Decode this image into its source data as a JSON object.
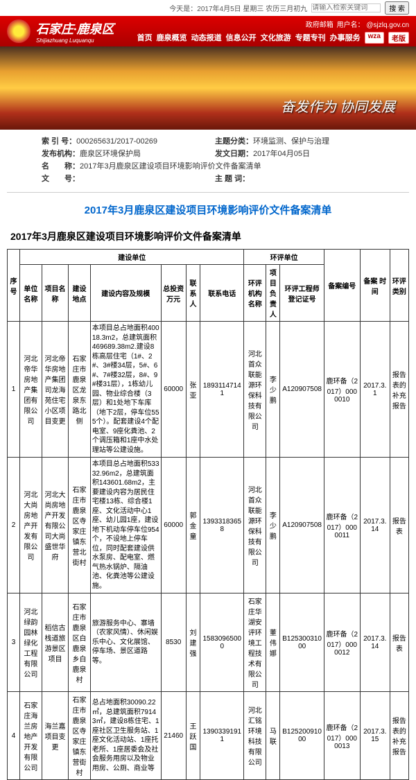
{
  "top": {
    "date": "今天是：2017年4月5日 星期三 农历三月初九",
    "search_placeholder": "请输入检索关键词",
    "search_btn": "搜 索"
  },
  "header": {
    "site_cn": "石家庄·鹿泉区",
    "site_py": "Shijiazhuang Luquanqu",
    "links": [
      "政府邮箱",
      "用户名：",
      "@sjzlq.gov.cn"
    ],
    "nav": [
      "首页",
      "鹿泉概览",
      "动态报道",
      "信息公开",
      "文化旅游",
      "专题专刊",
      "办事服务"
    ],
    "wza": "wza",
    "old": "老版"
  },
  "banner": {
    "slogan": "奋发作为  协同发展"
  },
  "meta": {
    "index_lbl": "索 引 号：",
    "index_val": "000265631/2017-00269",
    "topic_lbl": "主题分类：",
    "topic_val": "环境监测、保护与治理",
    "org_lbl": "发布机构：",
    "org_val": "鹿泉区环境保护局",
    "date_lbl": "发文日期：",
    "date_val": "2017年04月05日",
    "name_lbl": "名　　称：",
    "name_val": "2017年3月鹿泉区建设项目环境影响评价文件备案清单",
    "docno_lbl": "文　　号：",
    "kw_lbl": "主 题 词："
  },
  "page_title": "2017年3月鹿泉区建设项目环境影响评价文件备案清单",
  "sub_title": "2017年3月鹿泉区建设项目环境影响评价文件备案清单",
  "th": {
    "seq": "序号",
    "build_unit": "建设单位",
    "unit_name": "单位名称",
    "proj_name": "项目名称",
    "loc": "建设地点",
    "desc": "建设内容及规模",
    "inv": "总投资 万元",
    "contact": "联系人",
    "phone": "联系电话",
    "env_group": "环评单位",
    "env_unit": "环评机构名称",
    "head": "项目负责人",
    "cert": "环评工程师登记证号",
    "fileno": "备案编号",
    "filedate": "备案 时间",
    "type": "环评类别"
  },
  "rows": [
    {
      "seq": "1",
      "unit": "河北帝华房地产集团有限公司",
      "proj": "河北帝华房地产集团司龙海苑住宅小区项目变更",
      "loc": "石家庄市鹿泉区龙泉东路北侧",
      "desc": "本项目总占地面积40018.3m2，总建筑面积469689.38m2.建设8栋高层住宅（1#、2#、3#楼34层，5#、6#、7#楼32层，8#、9#楼31层），1栋幼儿园、物业综合楼（3层）和1处地下车库（地下2层，停车位555个）。配套建设4个配电室、9座化粪池、2个调压箱和1座中水处理站等公建设施。",
      "inv": "60000",
      "contact": "张亚",
      "phone": "18931147141",
      "env": "河北首众联能源环保科技有限公司",
      "head": "李少鹏",
      "cert": "A120907508",
      "fileno": "鹿环备（2017）0000010",
      "date": "2017.3.1",
      "type": "报告表的补充报告"
    },
    {
      "seq": "2",
      "unit": "河北大尚房地产开发有限公司",
      "proj": "河北大尚房地产开发有限公司大尚盛世华府",
      "loc": "石家庄市鹿泉区寺家庄镇东营北街村",
      "desc": "本项目总占地面积53332.96m2，总建筑面积143601.68m2，主要建设内容为居民住宅楼13栋、综合楼1座、文化活动中心1座、幼儿园1座，建设地下机动车停车位954个，不设地上停车位，同时配套建设供水泵房、配电室、燃气热水锅炉、隔油池、化粪池等公建设施。",
      "inv": "60000",
      "contact": "郭金童",
      "phone": "13933183658",
      "env": "河北首众联能源环保科技有限公司",
      "head": "李少鹏",
      "cert": "A120907508",
      "fileno": "鹿环备（2017）0000011",
      "date": "2017.3.14",
      "type": "报告表"
    },
    {
      "seq": "3",
      "unit": "河北绿韵园林绿化工程有限公司",
      "proj": "稻信古栈道旅游景区项目",
      "loc": "石家庄市鹿泉区白鹿泉乡白鹿泉村",
      "desc": "旅游服务中心、寨墙（农家风情）、休闲娱乐中心、文化展馆、停车场、景区道路等。",
      "inv": "8530",
      "contact": "刘建强",
      "phone": "15830965000",
      "env": "石家庄华湖安评环境工程技术有限公司",
      "head": "董伟娜",
      "cert": "B12530031000",
      "fileno": "鹿环备（2017）0000012",
      "date": "2017.3.14",
      "type": "报告表"
    },
    {
      "seq": "4",
      "unit": "石家庄海兰房地产开发有限公司",
      "proj": "海兰嘉项目变更",
      "loc": "石家庄市鹿泉区寺家庄镇东营街村",
      "desc": "总占地面积30090.22㎡，总建筑面积79143㎡，建设8栋住宅、1座社区卫生服务站、1座文化活动站、1座托老所、1座居委会及社会服务用房以及物业用房、公厕、商业等",
      "inv": "21460",
      "contact": "王跃国",
      "phone": "13903391911",
      "env": "河北汇铭环境科技有限公司",
      "head": "马联",
      "cert": "B12520091000",
      "fileno": "鹿环备（2017）0000013",
      "date": "2017.3.15",
      "type": "报告表的补充报告"
    }
  ]
}
